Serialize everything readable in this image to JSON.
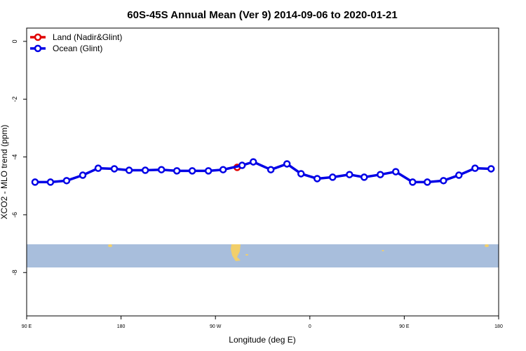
{
  "chart_data": {
    "type": "line",
    "title": "60S-45S Annual Mean (Ver 9)   2014-09-06 to 2020-01-21",
    "x_label": "Longitude (deg E)",
    "y_label": "XCO2 - MLO trend (ppm)",
    "xlim": [
      90,
      540
    ],
    "xticks": [
      {
        "value": 90,
        "label": "90 E"
      },
      180,
      {
        "value": 270,
        "label": "90 W"
      },
      {
        "value": 360,
        "label": "0"
      },
      {
        "value": 450,
        "label": "90 E"
      },
      {
        "value": 540,
        "label": "180"
      }
    ],
    "ylim": [
      -9.5,
      0.46
    ],
    "yticks": [
      0,
      -2,
      -4,
      -6,
      -8
    ],
    "legend": "top-left",
    "series": [
      {
        "name": "Land (Nadir&Glint)",
        "color": "#e00000",
        "x": [
          290.7
        ],
        "values": [
          -4.36
        ]
      },
      {
        "name": "Ocean (Glint)",
        "color": "#0000e6",
        "x": [
          98.0,
          112.7,
          128.1,
          143.5,
          158.2,
          173.6,
          187.7,
          203.1,
          218.5,
          233.2,
          247.9,
          263.3,
          277.3,
          295.4,
          306.1,
          322.8,
          338.2,
          351.6,
          367.0,
          381.7,
          397.8,
          411.8,
          427.2,
          441.9,
          458.0,
          472.0,
          487.4,
          502.1,
          517.5,
          532.8
        ],
        "values": [
          -4.87,
          -4.87,
          -4.82,
          -4.63,
          -4.39,
          -4.41,
          -4.46,
          -4.46,
          -4.44,
          -4.48,
          -4.48,
          -4.48,
          -4.44,
          -4.29,
          -4.17,
          -4.44,
          -4.24,
          -4.58,
          -4.75,
          -4.7,
          -4.61,
          -4.7,
          -4.61,
          -4.51,
          -4.87,
          -4.87,
          -4.82,
          -4.63,
          -4.39,
          -4.41
        ]
      }
    ]
  }
}
